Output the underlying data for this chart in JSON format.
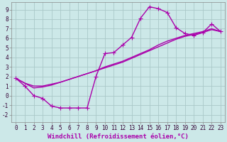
{
  "background_color": "#cce8e8",
  "grid_color": "#aac8c8",
  "line_color": "#aa00aa",
  "markersize": 2.5,
  "linewidth": 1.0,
  "xlabel": "Windchill (Refroidissement éolien,°C)",
  "xlabel_fontsize": 6.5,
  "tick_fontsize": 5.5,
  "yticks": [
    -2,
    -1,
    0,
    1,
    2,
    3,
    4,
    5,
    6,
    7,
    8,
    9
  ],
  "xticks": [
    0,
    1,
    2,
    3,
    4,
    5,
    6,
    7,
    8,
    9,
    10,
    11,
    12,
    13,
    14,
    15,
    16,
    17,
    18,
    19,
    20,
    21,
    22,
    23
  ],
  "xlim": [
    -0.5,
    23.5
  ],
  "ylim": [
    -2.8,
    9.8
  ],
  "curve1_x": [
    0,
    1,
    2,
    3,
    4,
    5,
    6,
    7,
    8,
    9,
    10,
    11,
    12,
    13,
    14,
    15,
    16,
    17,
    18,
    19,
    20,
    21,
    22,
    23
  ],
  "curve1_y": [
    1.8,
    1.0,
    0.0,
    -0.3,
    -1.1,
    -1.3,
    -1.3,
    -1.3,
    -1.3,
    2.0,
    4.4,
    4.5,
    5.3,
    6.1,
    8.1,
    9.3,
    9.1,
    8.7,
    7.1,
    6.5,
    6.3,
    6.6,
    7.5,
    6.7
  ],
  "curve2_x": [
    0,
    1,
    2,
    3,
    4,
    5,
    6,
    7,
    8,
    9,
    10,
    11,
    12,
    13,
    14,
    15,
    16,
    17,
    18,
    19,
    20,
    21,
    22,
    23
  ],
  "curve2_y": [
    1.8,
    1.3,
    1.0,
    1.0,
    1.2,
    1.4,
    1.7,
    2.0,
    2.3,
    2.6,
    3.0,
    3.3,
    3.6,
    4.0,
    4.4,
    4.8,
    5.3,
    5.7,
    6.0,
    6.3,
    6.5,
    6.7,
    7.0,
    6.7
  ],
  "curve3_x": [
    0,
    1,
    2,
    3,
    4,
    5,
    6,
    7,
    8,
    9,
    10,
    11,
    12,
    13,
    14,
    15,
    16,
    17,
    18,
    19,
    20,
    21,
    22,
    23
  ],
  "curve3_y": [
    1.8,
    1.3,
    0.8,
    0.9,
    1.1,
    1.4,
    1.7,
    2.0,
    2.3,
    2.6,
    2.9,
    3.2,
    3.5,
    3.9,
    4.3,
    4.7,
    5.1,
    5.5,
    5.9,
    6.2,
    6.4,
    6.6,
    6.9,
    6.7
  ]
}
